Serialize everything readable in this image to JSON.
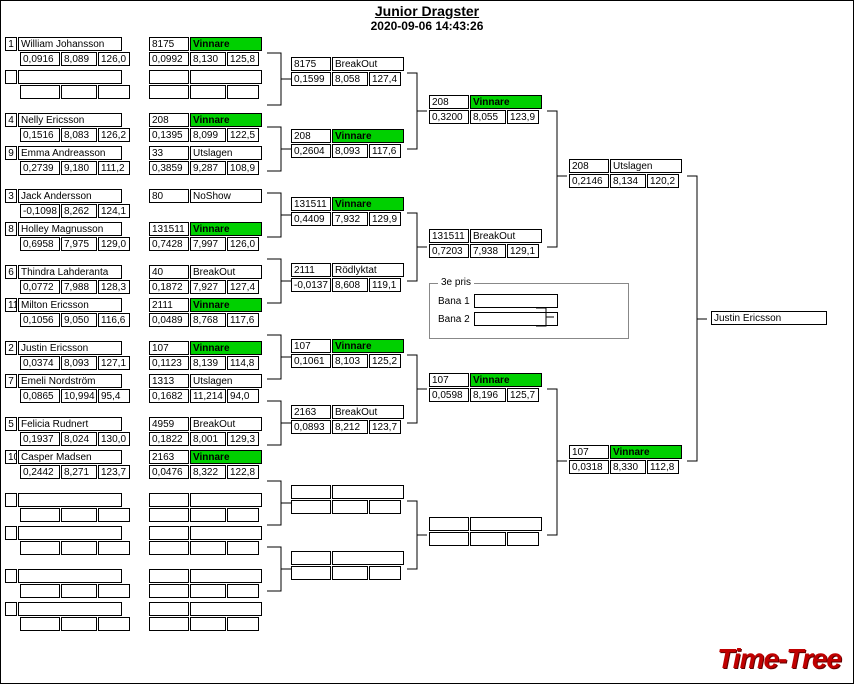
{
  "title": "Junior Dragster",
  "datetime": "2020-09-06 14:43:26",
  "logo": "Time-Tree",
  "winner": "Justin Ericsson",
  "status_colors": {
    "Vinnare": "#00d000"
  },
  "third_prize": {
    "label": "3e pris",
    "lane1": "Bana 1",
    "lane2": "Bana 2"
  },
  "col1": [
    {
      "seed": "1",
      "name": "William Johansson",
      "rt": "0,0916",
      "et": "8,089",
      "sp": "126,0"
    },
    null,
    {
      "seed": "4",
      "name": "Nelly Ericsson",
      "rt": "0,1516",
      "et": "8,083",
      "sp": "126,2"
    },
    {
      "seed": "9",
      "name": "Emma Andreasson",
      "rt": "0,2739",
      "et": "9,180",
      "sp": "111,2"
    },
    {
      "seed": "3",
      "name": "Jack Andersson",
      "rt": "-0,1098",
      "et": "8,262",
      "sp": "124,1"
    },
    {
      "seed": "8",
      "name": "Holley Magnusson",
      "rt": "0,6958",
      "et": "7,975",
      "sp": "129,0"
    },
    {
      "seed": "6",
      "name": "Thindra Lahderanta",
      "rt": "0,0772",
      "et": "7,988",
      "sp": "128,3"
    },
    {
      "seed": "11",
      "name": "Milton Ericsson",
      "rt": "0,1056",
      "et": "9,050",
      "sp": "116,6"
    },
    {
      "seed": "2",
      "name": "Justin Ericsson",
      "rt": "0,0374",
      "et": "8,093",
      "sp": "127,1"
    },
    {
      "seed": "7",
      "name": "Emeli Nordström",
      "rt": "0,0865",
      "et": "10,994",
      "sp": "95,4"
    },
    {
      "seed": "5",
      "name": "Felicia Rudnert",
      "rt": "0,1937",
      "et": "8,024",
      "sp": "130,0"
    },
    {
      "seed": "10",
      "name": "Casper Madsen",
      "rt": "0,2442",
      "et": "8,271",
      "sp": "123,7"
    },
    null,
    null,
    null,
    null
  ],
  "col2": [
    {
      "num": "8175",
      "status": "Vinnare",
      "rt": "0,0992",
      "et": "8,130",
      "sp": "125,8"
    },
    null,
    {
      "num": "208",
      "status": "Vinnare",
      "rt": "0,1395",
      "et": "8,099",
      "sp": "122,5"
    },
    {
      "num": "33",
      "status": "Utslagen",
      "rt": "0,3859",
      "et": "9,287",
      "sp": "108,9"
    },
    {
      "num": "80",
      "status": "NoShow"
    },
    {
      "num": "131511",
      "status": "Vinnare",
      "rt": "0,7428",
      "et": "7,997",
      "sp": "126,0"
    },
    {
      "num": "40",
      "status": "BreakOut",
      "rt": "0,1872",
      "et": "7,927",
      "sp": "127,4"
    },
    {
      "num": "2111",
      "status": "Vinnare",
      "rt": "0,0489",
      "et": "8,768",
      "sp": "117,6"
    },
    {
      "num": "107",
      "status": "Vinnare",
      "rt": "0,1123",
      "et": "8,139",
      "sp": "114,8"
    },
    {
      "num": "1313",
      "status": "Utslagen",
      "rt": "0,1682",
      "et": "11,214",
      "sp": "94,0"
    },
    {
      "num": "4959",
      "status": "BreakOut",
      "rt": "0,1822",
      "et": "8,001",
      "sp": "129,3"
    },
    {
      "num": "2163",
      "status": "Vinnare",
      "rt": "0,0476",
      "et": "8,322",
      "sp": "122,8"
    },
    null,
    null,
    null,
    null
  ],
  "col3": [
    {
      "num": "8175",
      "status": "BreakOut",
      "rt": "0,1599",
      "et": "8,058",
      "sp": "127,4"
    },
    {
      "num": "208",
      "status": "Vinnare",
      "rt": "0,2604",
      "et": "8,093",
      "sp": "117,6"
    },
    {
      "num": "131511",
      "status": "Vinnare",
      "rt": "0,4409",
      "et": "7,932",
      "sp": "129,9"
    },
    {
      "num": "2111",
      "status": "Rödlyktat",
      "rt": "-0,0137",
      "et": "8,608",
      "sp": "119,1"
    },
    {
      "num": "107",
      "status": "Vinnare",
      "rt": "0,1061",
      "et": "8,103",
      "sp": "125,2"
    },
    {
      "num": "2163",
      "status": "BreakOut",
      "rt": "0,0893",
      "et": "8,212",
      "sp": "123,7"
    },
    null,
    null
  ],
  "col4": [
    {
      "num": "208",
      "status": "Vinnare",
      "rt": "0,3200",
      "et": "8,055",
      "sp": "123,9"
    },
    {
      "num": "131511",
      "status": "BreakOut",
      "rt": "0,7203",
      "et": "7,938",
      "sp": "129,1"
    },
    {
      "num": "107",
      "status": "Vinnare",
      "rt": "0,0598",
      "et": "8,196",
      "sp": "125,7"
    },
    null
  ],
  "col5": [
    {
      "num": "208",
      "status": "Utslagen",
      "rt": "0,2146",
      "et": "8,134",
      "sp": "120,2"
    },
    {
      "num": "107",
      "status": "Vinnare",
      "rt": "0,0318",
      "et": "8,330",
      "sp": "112,8"
    }
  ]
}
